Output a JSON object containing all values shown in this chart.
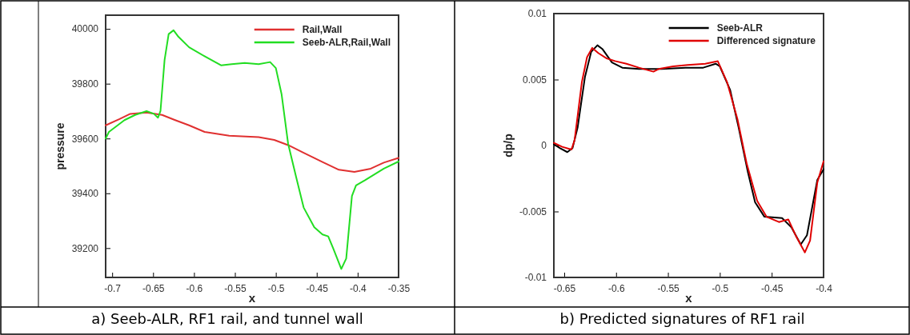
{
  "chart_data": [
    {
      "type": "line",
      "xlabel": "x",
      "ylabel": "pressure",
      "annotations": [
        "a) Seeb-ALR, RF1 rail, and tunnel wall"
      ],
      "xlim": [
        -0.708,
        -0.35
      ],
      "ylim": [
        39093,
        40050
      ],
      "xticks": [
        -0.7,
        -0.65,
        -0.6,
        -0.55,
        -0.5,
        -0.45,
        -0.4,
        -0.35
      ],
      "yticks": [
        39200,
        39400,
        39600,
        39800,
        40000
      ],
      "grid": false,
      "legend": "top right",
      "line_style": "solid",
      "series": [
        {
          "name": "Rail,Wall",
          "color": "#e03030",
          "x": [
            -0.708,
            -0.691,
            -0.678,
            -0.658,
            -0.639,
            -0.623,
            -0.606,
            -0.587,
            -0.557,
            -0.521,
            -0.502,
            -0.485,
            -0.466,
            -0.443,
            -0.423,
            -0.404,
            -0.384,
            -0.368,
            -0.35
          ],
          "values": [
            39648,
            39671,
            39690,
            39695,
            39686,
            39667,
            39648,
            39624,
            39610,
            39605,
            39595,
            39576,
            39548,
            39514,
            39486,
            39478,
            39490,
            39512,
            39529
          ]
        },
        {
          "name": "Seeb-ALR,Rail,Wall",
          "color": "#22dd22",
          "x": [
            -0.708,
            -0.704,
            -0.685,
            -0.672,
            -0.658,
            -0.649,
            -0.644,
            -0.641,
            -0.636,
            -0.631,
            -0.625,
            -0.619,
            -0.606,
            -0.587,
            -0.567,
            -0.554,
            -0.538,
            -0.521,
            -0.507,
            -0.5,
            -0.493,
            -0.485,
            -0.475,
            -0.466,
            -0.453,
            -0.443,
            -0.436,
            -0.43,
            -0.42,
            -0.414,
            -0.407,
            -0.402,
            -0.391,
            -0.368,
            -0.35
          ],
          "values": [
            39600,
            39624,
            39667,
            39686,
            39700,
            39690,
            39676,
            39700,
            39886,
            39981,
            39995,
            39971,
            39933,
            39900,
            39867,
            39871,
            39876,
            39871,
            39879,
            39857,
            39762,
            39581,
            39457,
            39348,
            39276,
            39250,
            39243,
            39200,
            39124,
            39162,
            39390,
            39429,
            39448,
            39490,
            39516
          ]
        }
      ]
    },
    {
      "type": "line",
      "xlabel": "x",
      "ylabel": "dp/p",
      "annotations": [
        "b) Predicted signatures of RF1 rail"
      ],
      "xlim": [
        -0.66,
        -0.4
      ],
      "ylim": [
        -0.01,
        0.01
      ],
      "xticks": [
        -0.65,
        -0.6,
        -0.55,
        -0.5,
        -0.45,
        -0.4
      ],
      "yticks": [
        -0.01,
        -0.005,
        0,
        0.005,
        0.01
      ],
      "grid": false,
      "legend": "top right",
      "line_style": "solid",
      "series": [
        {
          "name": "Seeb-ALR",
          "color": "#000000",
          "x": [
            -0.66,
            -0.654,
            -0.647,
            -0.642,
            -0.637,
            -0.63,
            -0.624,
            -0.618,
            -0.613,
            -0.604,
            -0.594,
            -0.578,
            -0.556,
            -0.533,
            -0.516,
            -0.504,
            -0.5,
            -0.49,
            -0.482,
            -0.473,
            -0.466,
            -0.457,
            -0.44,
            -0.431,
            -0.422,
            -0.416,
            -0.406,
            -0.4
          ],
          "values": [
            0.0001,
            -0.0002,
            -0.0005,
            -0.0002,
            0.0014,
            0.0052,
            0.0071,
            0.0076,
            0.0073,
            0.0063,
            0.0059,
            0.0058,
            0.0058,
            0.0059,
            0.0059,
            0.0062,
            0.006,
            0.0042,
            0.0014,
            -0.002,
            -0.0043,
            -0.0054,
            -0.0055,
            -0.0062,
            -0.0075,
            -0.0068,
            -0.0026,
            -0.0018
          ]
        },
        {
          "name": "Differenced signature",
          "color": "#e00000",
          "x": [
            -0.66,
            -0.652,
            -0.643,
            -0.64,
            -0.633,
            -0.628,
            -0.623,
            -0.617,
            -0.609,
            -0.601,
            -0.59,
            -0.578,
            -0.564,
            -0.559,
            -0.545,
            -0.531,
            -0.514,
            -0.502,
            -0.493,
            -0.483,
            -0.474,
            -0.464,
            -0.455,
            -0.443,
            -0.434,
            -0.427,
            -0.418,
            -0.413,
            -0.406,
            -0.4
          ],
          "values": [
            0.0002,
            -0.0001,
            -0.0003,
            0.0004,
            0.0048,
            0.0067,
            0.0074,
            0.007,
            0.0066,
            0.0064,
            0.0062,
            0.0059,
            0.0056,
            0.0058,
            0.006,
            0.0061,
            0.0062,
            0.0064,
            0.0048,
            0.002,
            -0.0014,
            -0.0042,
            -0.0054,
            -0.0058,
            -0.0056,
            -0.0068,
            -0.0081,
            -0.0072,
            -0.0028,
            -0.0012
          ]
        }
      ]
    }
  ]
}
